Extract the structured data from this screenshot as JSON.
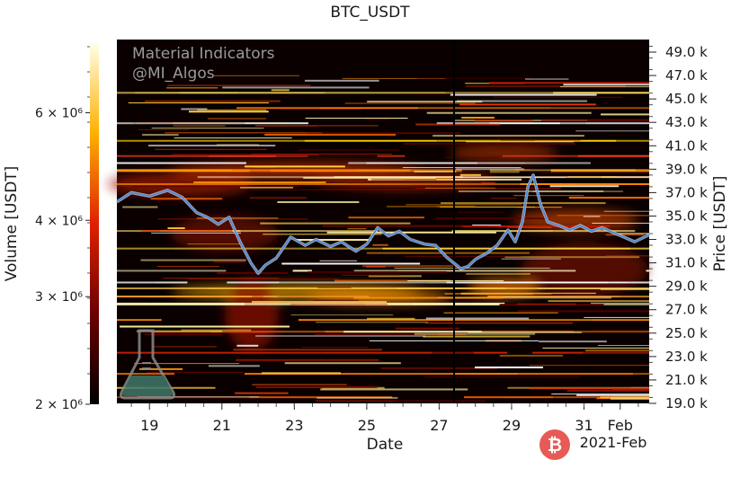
{
  "chart_data": {
    "type": "heatmap",
    "title": "BTC_USDT",
    "xlabel": "Date",
    "ylabel_left": "Volume [USDT]",
    "ylabel_right": "Price [USDT]",
    "annotations": [
      "Material Indicators",
      "@MI_Algos"
    ],
    "x_ticks": [
      "19",
      "21",
      "23",
      "25",
      "27",
      "29",
      "31",
      "Feb"
    ],
    "x_year_label": "2021-Feb",
    "colorbar_ticks": [
      "2 × 10⁶",
      "3 × 10⁶",
      "4 × 10⁶",
      "6 × 10⁶"
    ],
    "colorbar_values": [
      2000000,
      3000000,
      4000000,
      6000000
    ],
    "colorbar_range": [
      2000000,
      7800000
    ],
    "colorbar_scale": "log",
    "price_ticks": [
      "49.0 k",
      "47.0 k",
      "45.0 k",
      "43.0 k",
      "41.0 k",
      "39.0 k",
      "37.0 k",
      "35.0 k",
      "33.0 k",
      "31.0 k",
      "29.0 k",
      "27.0 k",
      "25.0 k",
      "23.0 k",
      "21.0 k",
      "19.0 k"
    ],
    "price_tick_values": [
      49000,
      47000,
      45000,
      43000,
      41000,
      39000,
      37000,
      35000,
      33000,
      31000,
      29000,
      27000,
      25000,
      23000,
      21000,
      19000
    ],
    "ylim": [
      19000,
      50500
    ],
    "xlim_days": [
      18.1,
      1.8
    ],
    "price_series": {
      "x_days": [
        18.1,
        18.5,
        19.0,
        19.5,
        19.9,
        20.3,
        20.6,
        20.9,
        21.2,
        21.5,
        21.8,
        22.0,
        22.2,
        22.5,
        22.9,
        23.3,
        23.6,
        24.0,
        24.3,
        24.7,
        25.0,
        25.3,
        25.6,
        25.9,
        26.2,
        26.6,
        26.9,
        27.2,
        27.4,
        27.6,
        27.8,
        28.0,
        28.3,
        28.6,
        28.9,
        29.1,
        29.3,
        29.45,
        29.6,
        29.8,
        30.0,
        30.3,
        30.6,
        30.9,
        31.2,
        31.5,
        31.8,
        1.1,
        1.4,
        1.8
      ],
      "price": [
        36200,
        37000,
        36700,
        37200,
        36600,
        35300,
        34900,
        34300,
        34900,
        32800,
        31000,
        30100,
        30800,
        31400,
        33200,
        32500,
        33000,
        32400,
        32800,
        32000,
        32600,
        34000,
        33300,
        33700,
        33000,
        32600,
        32500,
        31500,
        31000,
        30500,
        30700,
        31300,
        31800,
        32500,
        33800,
        32800,
        34500,
        37500,
        38500,
        36000,
        34500,
        34200,
        33800,
        34200,
        33700,
        34000,
        33600,
        33200,
        32800,
        33400
      ]
    },
    "colors": {
      "background": "#0a0000",
      "price_line": "#4d88d9",
      "price_outline": "#d8d8d8"
    }
  }
}
